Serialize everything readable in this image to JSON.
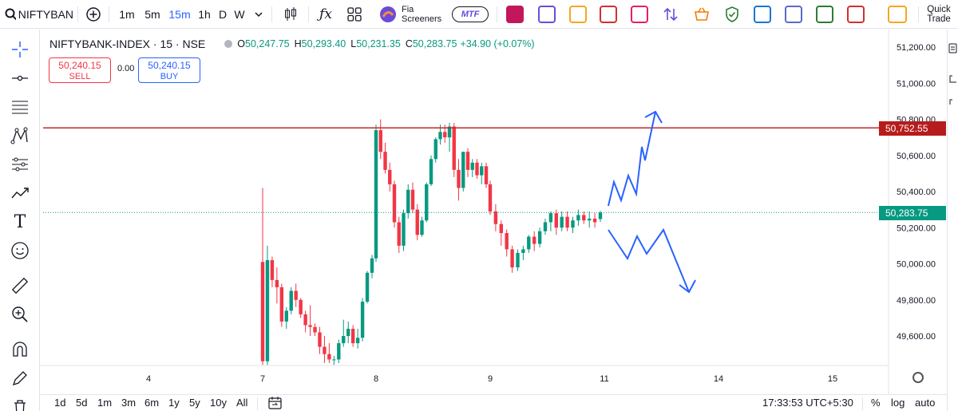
{
  "toolbar": {
    "symbol": "NIFTYBAN",
    "intervals": [
      "1m",
      "5m",
      "15m",
      "1h",
      "D",
      "W"
    ],
    "active_interval": "15m",
    "fia_line1": "Fia",
    "fia_line2": "Screeners",
    "mtf_label": "MTF",
    "quick_line1": "Quick",
    "quick_line2": "Trade"
  },
  "legend": {
    "symbol": "NIFTYBANK-INDEX · 15 · NSE",
    "o_label": "O",
    "o": "50,247.75",
    "h_label": "H",
    "h": "50,293.40",
    "l_label": "L",
    "l": "50,231.35",
    "c_label": "C",
    "c": "50,283.75",
    "change": "+34.90 (+0.07%)"
  },
  "trade": {
    "sell_price": "50,240.15",
    "sell_label": "SELL",
    "spread": "0.00",
    "buy_price": "50,240.15",
    "buy_label": "BUY"
  },
  "price_axis": {
    "ticks": [
      "51,200.00",
      "51,000.00",
      "50,800.00",
      "50,600.00",
      "50,400.00",
      "50,200.00",
      "50,000.00",
      "49,800.00",
      "49,600.00"
    ],
    "horizontal_line_label": "50,752.55",
    "last_price_label": "50,283.75"
  },
  "time_axis": {
    "ticks": [
      "4",
      "7",
      "8",
      "9",
      "11",
      "14",
      "15"
    ]
  },
  "bottom": {
    "ranges": [
      "1d",
      "5d",
      "1m",
      "3m",
      "6m",
      "1y",
      "5y",
      "10y",
      "All"
    ],
    "clock": "17:33:53 UTC+5:30",
    "percent": "%",
    "log": "log",
    "auto": "auto"
  },
  "chart_data": {
    "type": "candlestick",
    "symbol": "NIFTYBANK-INDEX",
    "interval": "15",
    "exchange": "NSE",
    "ylim": [
      49450,
      51300
    ],
    "y_ticks": [
      51200,
      51000,
      50800,
      50600,
      50400,
      50200,
      50000,
      49800,
      49600
    ],
    "x_ticks": [
      "4",
      "7",
      "8",
      "9",
      "11",
      "14",
      "15"
    ],
    "horizontal_line": 50752.55,
    "last_price": 50283.75,
    "grid": false,
    "colors": {
      "up": "#089981",
      "down": "#f23645",
      "hline": "#c62828",
      "drawing": "#2962ff"
    },
    "candles": [
      {
        "o": 50010,
        "h": 50420,
        "l": 49440,
        "c": 49460
      },
      {
        "o": 49460,
        "h": 50100,
        "l": 49440,
        "c": 50020
      },
      {
        "o": 50020,
        "h": 50040,
        "l": 49870,
        "c": 49910
      },
      {
        "o": 49910,
        "h": 49980,
        "l": 49780,
        "c": 49870
      },
      {
        "o": 49870,
        "h": 49890,
        "l": 49650,
        "c": 49680
      },
      {
        "o": 49680,
        "h": 49760,
        "l": 49640,
        "c": 49740
      },
      {
        "o": 49740,
        "h": 49870,
        "l": 49720,
        "c": 49850
      },
      {
        "o": 49850,
        "h": 49890,
        "l": 49760,
        "c": 49800
      },
      {
        "o": 49800,
        "h": 49810,
        "l": 49700,
        "c": 49720
      },
      {
        "o": 49720,
        "h": 49740,
        "l": 49620,
        "c": 49660
      },
      {
        "o": 49660,
        "h": 49770,
        "l": 49600,
        "c": 49650
      },
      {
        "o": 49650,
        "h": 49670,
        "l": 49600,
        "c": 49620
      },
      {
        "o": 49620,
        "h": 49650,
        "l": 49500,
        "c": 49540
      },
      {
        "o": 49540,
        "h": 49600,
        "l": 49450,
        "c": 49500
      },
      {
        "o": 49500,
        "h": 49560,
        "l": 49450,
        "c": 49470
      },
      {
        "o": 49470,
        "h": 49490,
        "l": 49440,
        "c": 49470
      },
      {
        "o": 49470,
        "h": 49580,
        "l": 49450,
        "c": 49560
      },
      {
        "o": 49560,
        "h": 49690,
        "l": 49540,
        "c": 49600
      },
      {
        "o": 49600,
        "h": 49680,
        "l": 49560,
        "c": 49640
      },
      {
        "o": 49640,
        "h": 49660,
        "l": 49540,
        "c": 49560
      },
      {
        "o": 49560,
        "h": 49640,
        "l": 49530,
        "c": 49590
      },
      {
        "o": 49590,
        "h": 49810,
        "l": 49570,
        "c": 49790
      },
      {
        "o": 49790,
        "h": 49960,
        "l": 49780,
        "c": 49950
      },
      {
        "o": 49950,
        "h": 50050,
        "l": 49920,
        "c": 50030
      },
      {
        "o": 50030,
        "h": 50770,
        "l": 50010,
        "c": 50740
      },
      {
        "o": 50740,
        "h": 50800,
        "l": 50580,
        "c": 50620
      },
      {
        "o": 50620,
        "h": 50670,
        "l": 50500,
        "c": 50520
      },
      {
        "o": 50520,
        "h": 50560,
        "l": 50400,
        "c": 50440
      },
      {
        "o": 50440,
        "h": 50460,
        "l": 50200,
        "c": 50230
      },
      {
        "o": 50230,
        "h": 50260,
        "l": 50060,
        "c": 50100
      },
      {
        "o": 50100,
        "h": 50300,
        "l": 50070,
        "c": 50280
      },
      {
        "o": 50280,
        "h": 50440,
        "l": 50250,
        "c": 50410
      },
      {
        "o": 50410,
        "h": 50450,
        "l": 50280,
        "c": 50300
      },
      {
        "o": 50300,
        "h": 50330,
        "l": 50130,
        "c": 50160
      },
      {
        "o": 50160,
        "h": 50260,
        "l": 50150,
        "c": 50240
      },
      {
        "o": 50240,
        "h": 50450,
        "l": 50230,
        "c": 50440
      },
      {
        "o": 50440,
        "h": 50600,
        "l": 50430,
        "c": 50580
      },
      {
        "o": 50580,
        "h": 50700,
        "l": 50560,
        "c": 50690
      },
      {
        "o": 50690,
        "h": 50770,
        "l": 50660,
        "c": 50730
      },
      {
        "o": 50730,
        "h": 50770,
        "l": 50670,
        "c": 50700
      },
      {
        "o": 50700,
        "h": 50780,
        "l": 50620,
        "c": 50760
      },
      {
        "o": 50760,
        "h": 50780,
        "l": 50480,
        "c": 50520
      },
      {
        "o": 50520,
        "h": 50580,
        "l": 50350,
        "c": 50420
      },
      {
        "o": 50420,
        "h": 50620,
        "l": 50400,
        "c": 50620
      },
      {
        "o": 50620,
        "h": 50640,
        "l": 50480,
        "c": 50520
      },
      {
        "o": 50520,
        "h": 50580,
        "l": 50480,
        "c": 50560
      },
      {
        "o": 50560,
        "h": 50580,
        "l": 50470,
        "c": 50490
      },
      {
        "o": 50490,
        "h": 50560,
        "l": 50440,
        "c": 50540
      },
      {
        "o": 50540,
        "h": 50560,
        "l": 50420,
        "c": 50440
      },
      {
        "o": 50440,
        "h": 50460,
        "l": 50270,
        "c": 50290
      },
      {
        "o": 50290,
        "h": 50330,
        "l": 50180,
        "c": 50220
      },
      {
        "o": 50220,
        "h": 50240,
        "l": 50100,
        "c": 50170
      },
      {
        "o": 50170,
        "h": 50190,
        "l": 50040,
        "c": 50080
      },
      {
        "o": 50080,
        "h": 50100,
        "l": 49950,
        "c": 49980
      },
      {
        "o": 49980,
        "h": 50080,
        "l": 49960,
        "c": 50060
      },
      {
        "o": 50060,
        "h": 50100,
        "l": 50020,
        "c": 50080
      },
      {
        "o": 50080,
        "h": 50160,
        "l": 50060,
        "c": 50150
      },
      {
        "o": 50150,
        "h": 50180,
        "l": 50070,
        "c": 50110
      },
      {
        "o": 50110,
        "h": 50200,
        "l": 50090,
        "c": 50180
      },
      {
        "o": 50180,
        "h": 50250,
        "l": 50160,
        "c": 50230
      },
      {
        "o": 50230,
        "h": 50290,
        "l": 50180,
        "c": 50280
      },
      {
        "o": 50280,
        "h": 50300,
        "l": 50160,
        "c": 50200
      },
      {
        "o": 50200,
        "h": 50290,
        "l": 50180,
        "c": 50260
      },
      {
        "o": 50260,
        "h": 50290,
        "l": 50180,
        "c": 50200
      },
      {
        "o": 50200,
        "h": 50260,
        "l": 50170,
        "c": 50240
      },
      {
        "o": 50240,
        "h": 50300,
        "l": 50210,
        "c": 50270
      },
      {
        "o": 50270,
        "h": 50290,
        "l": 50220,
        "c": 50240
      },
      {
        "o": 50240,
        "h": 50290,
        "l": 50200,
        "c": 50250
      },
      {
        "o": 50250,
        "h": 50280,
        "l": 50200,
        "c": 50230
      },
      {
        "o": 50247.75,
        "h": 50293.4,
        "l": 50231.35,
        "c": 50283.75
      }
    ]
  }
}
